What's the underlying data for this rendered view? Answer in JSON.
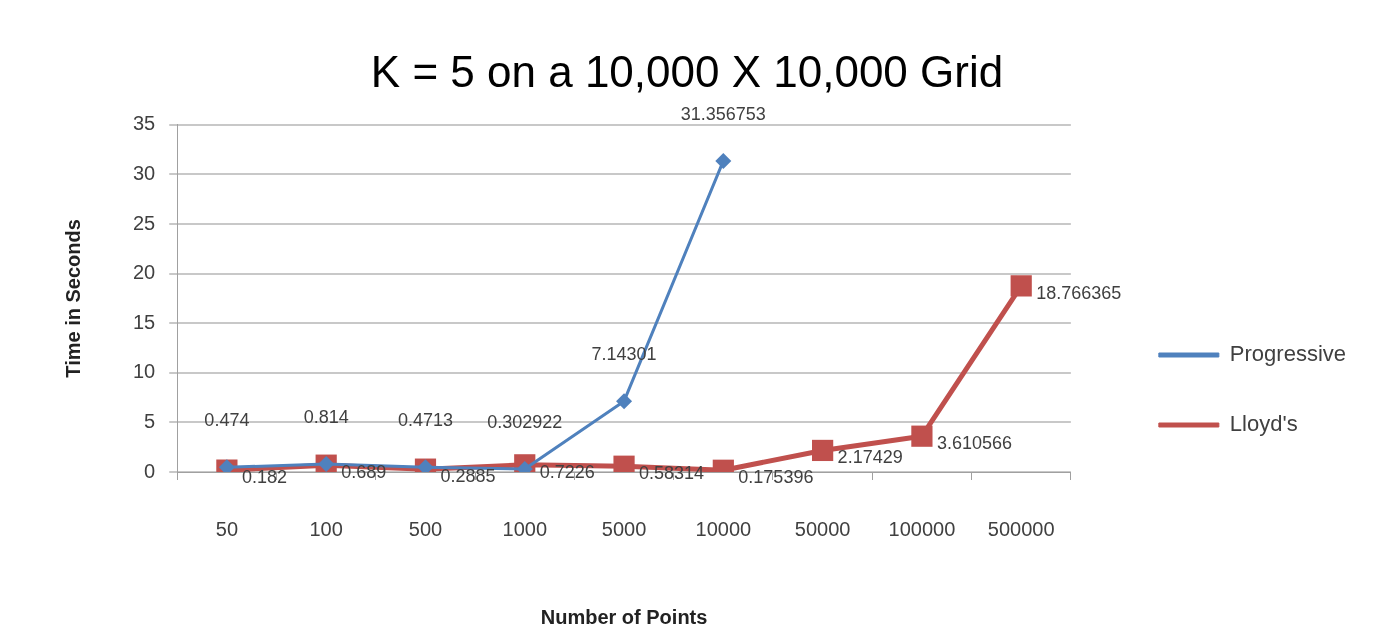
{
  "chart_data": {
    "type": "line",
    "title": "K = 5 on a 10,000 X 10,000 Grid",
    "xlabel": "Number of Points",
    "ylabel": "Time in Seconds",
    "categories": [
      "50",
      "100",
      "500",
      "1000",
      "5000",
      "10000",
      "50000",
      "100000",
      "500000"
    ],
    "series": [
      {
        "name": "Progressive",
        "color": "#4f81bd",
        "marker": "diamond",
        "values": [
          0.474,
          0.814,
          0.4713,
          0.302922,
          7.14301,
          31.356753,
          null,
          null,
          null
        ]
      },
      {
        "name": "Lloyd's",
        "color": "#c0504d",
        "marker": "square",
        "values": [
          0.182,
          0.689,
          0.2885,
          0.7226,
          0.58314,
          0.175396,
          2.17429,
          3.610566,
          18.766365
        ]
      }
    ],
    "ylim": [
      0,
      35
    ],
    "yticks": [
      0,
      5,
      10,
      15,
      20,
      25,
      30,
      35
    ],
    "grid": "y",
    "legend": "right",
    "data_labels": true
  }
}
